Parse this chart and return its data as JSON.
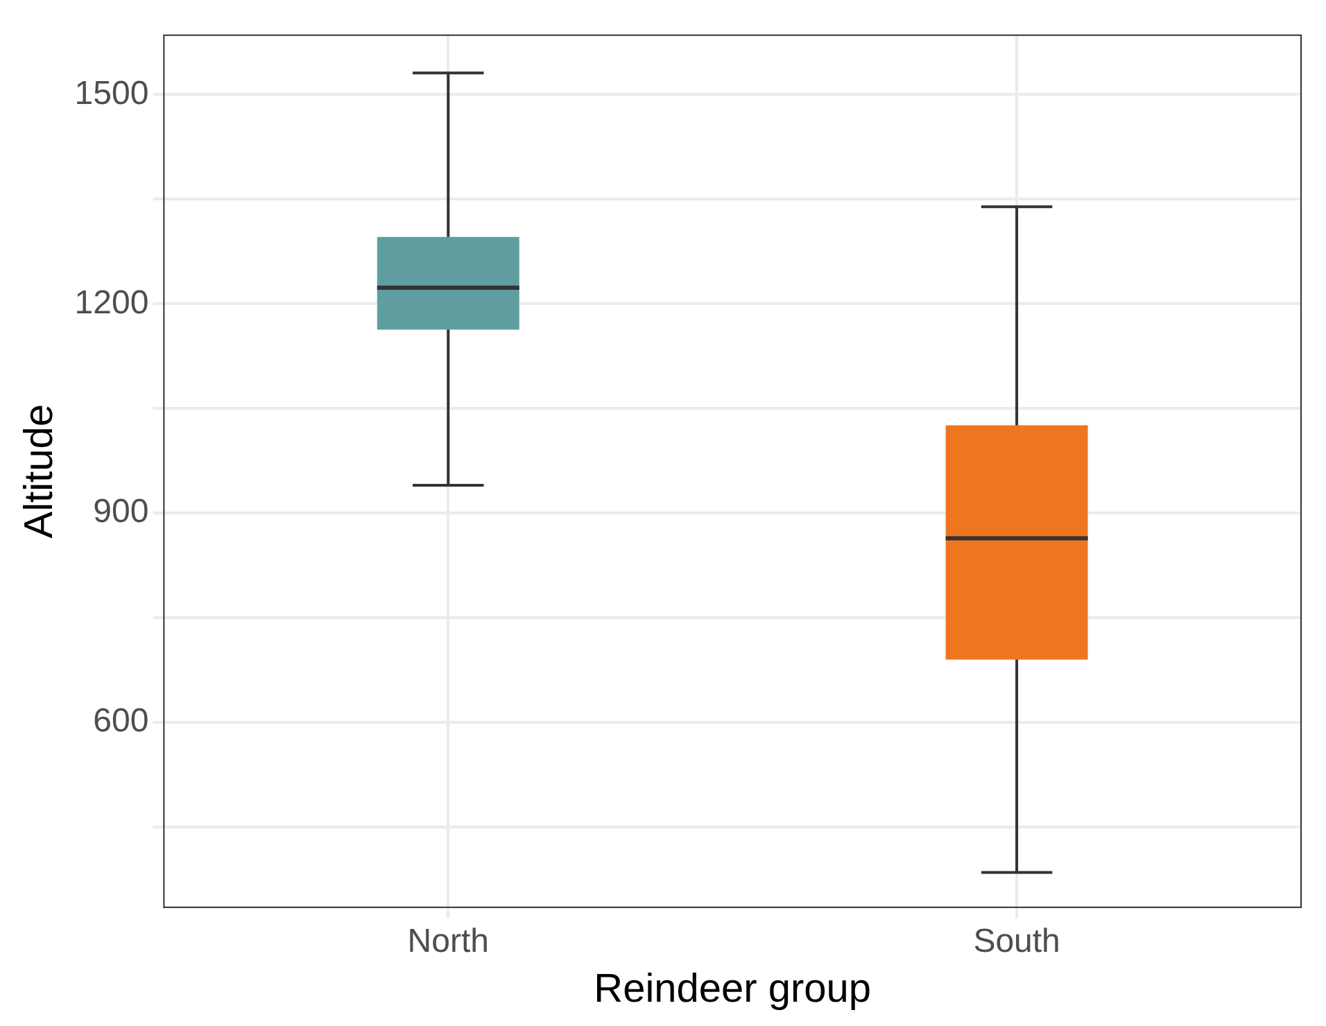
{
  "chart_data": {
    "type": "box",
    "xlabel": "Reindeer group",
    "ylabel": "Altitude",
    "categories": [
      "North",
      "South"
    ],
    "colors": [
      "#5f9ea0",
      "#ee7621"
    ],
    "boxes": [
      {
        "low": 940,
        "q1": 1163,
        "median": 1223,
        "q3": 1296,
        "high": 1531
      },
      {
        "low": 385,
        "q1": 690,
        "median": 864,
        "q3": 1026,
        "high": 1339
      }
    ],
    "ylim": [
      335,
      1585
    ],
    "yticks": [
      {
        "value": 450,
        "label": null
      },
      600,
      {
        "value": 750,
        "label": null
      },
      900,
      {
        "value": 1050,
        "label": null
      },
      1200,
      {
        "value": 1350,
        "label": null
      },
      1500
    ],
    "grid": true,
    "legend": false
  }
}
